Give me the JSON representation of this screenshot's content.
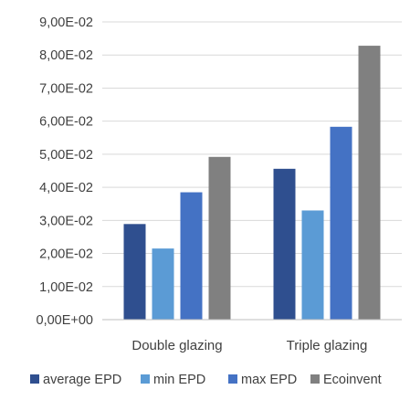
{
  "chart_data": {
    "type": "bar",
    "categories": [
      "Double glazing",
      "Triple glazing"
    ],
    "series": [
      {
        "name": "average EPD",
        "color": "#2f4f8f",
        "values": [
          0.0289,
          0.0456
        ]
      },
      {
        "name": "min EPD",
        "color": "#5b9bd5",
        "values": [
          0.0215,
          0.033
        ]
      },
      {
        "name": "max EPD",
        "color": "#4472c4",
        "values": [
          0.0385,
          0.0583
        ]
      },
      {
        "name": "Ecoinvent",
        "color": "#808080",
        "values": [
          0.0492,
          0.0828
        ]
      }
    ],
    "ylim": [
      0,
      0.09
    ],
    "yticks": [
      {
        "value": 0.0,
        "label": "0,00E+00"
      },
      {
        "value": 0.01,
        "label": "1,00E-02"
      },
      {
        "value": 0.02,
        "label": "2,00E-02"
      },
      {
        "value": 0.03,
        "label": "3,00E-02"
      },
      {
        "value": 0.04,
        "label": "4,00E-02"
      },
      {
        "value": 0.05,
        "label": "5,00E-02"
      },
      {
        "value": 0.06,
        "label": "6,00E-02"
      },
      {
        "value": 0.07,
        "label": "7,00E-02"
      },
      {
        "value": 0.08,
        "label": "8,00E-02"
      },
      {
        "value": 0.09,
        "label": "9,00E-02"
      }
    ],
    "grid": true,
    "legend_position": "bottom",
    "title": "",
    "xlabel": "",
    "ylabel": ""
  }
}
